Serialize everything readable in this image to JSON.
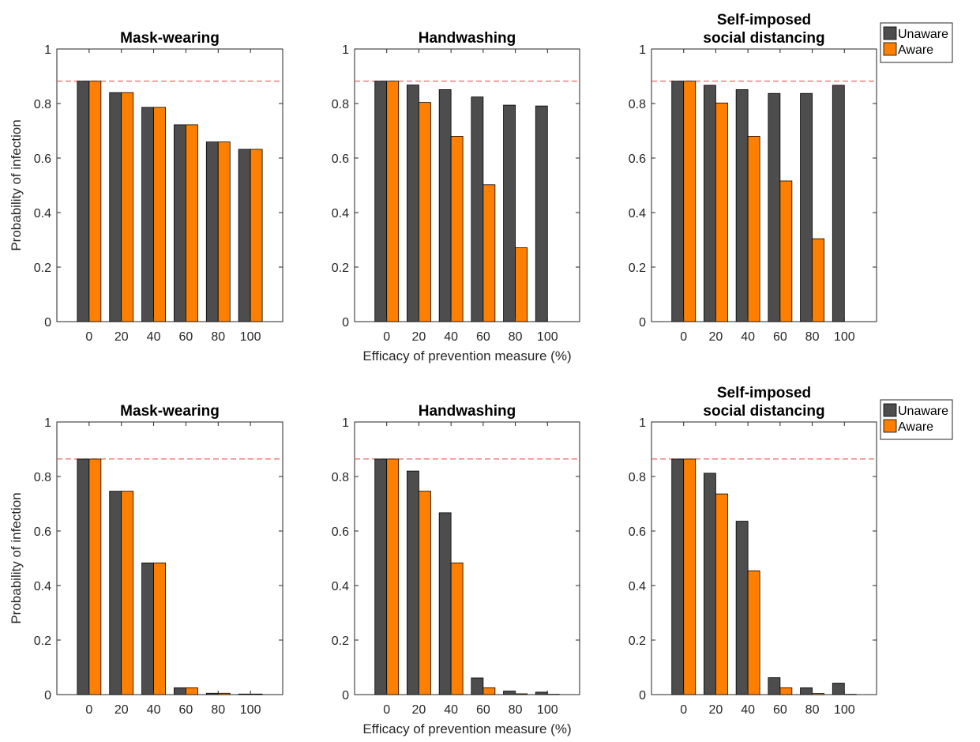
{
  "legend": {
    "labels": [
      "Unaware",
      "Aware"
    ]
  },
  "colors": {
    "unaware": "#4d4d4d",
    "aware": "#ff8000",
    "reference_line": "#e8413a",
    "axis": "#262626"
  },
  "chart_data": [
    {
      "type": "bar",
      "title": "Mask-wearing",
      "ylabel": "Probability of infection",
      "xlabel": "",
      "categories": [
        "0",
        "20",
        "40",
        "60",
        "80",
        "100"
      ],
      "yticks": [
        "0",
        "0.2",
        "0.4",
        "0.6",
        "0.8",
        "1"
      ],
      "ylim": [
        0,
        1
      ],
      "reference_line": 0.882,
      "series": [
        {
          "name": "Unaware",
          "values": [
            0.882,
            0.84,
            0.786,
            0.722,
            0.659,
            0.632
          ]
        },
        {
          "name": "Aware",
          "values": [
            0.882,
            0.84,
            0.786,
            0.722,
            0.659,
            0.632
          ]
        }
      ]
    },
    {
      "type": "bar",
      "title": "Handwashing",
      "ylabel": "",
      "xlabel": "Efficacy of prevention measure (%)",
      "categories": [
        "0",
        "20",
        "40",
        "60",
        "80",
        "100"
      ],
      "yticks": [
        "0",
        "0.2",
        "0.4",
        "0.6",
        "0.8",
        "1"
      ],
      "ylim": [
        0,
        1
      ],
      "reference_line": 0.882,
      "series": [
        {
          "name": "Unaware",
          "values": [
            0.882,
            0.868,
            0.851,
            0.824,
            0.794,
            0.791
          ]
        },
        {
          "name": "Aware",
          "values": [
            0.882,
            0.804,
            0.68,
            0.502,
            0.271,
            0.0
          ]
        }
      ]
    },
    {
      "type": "bar",
      "title": "Self-imposed\nsocial distancing",
      "ylabel": "",
      "xlabel": "",
      "categories": [
        "0",
        "20",
        "40",
        "60",
        "80",
        "100"
      ],
      "yticks": [
        "0",
        "0.2",
        "0.4",
        "0.6",
        "0.8",
        "1"
      ],
      "ylim": [
        0,
        1
      ],
      "reference_line": 0.882,
      "series": [
        {
          "name": "Unaware",
          "values": [
            0.882,
            0.867,
            0.851,
            0.837,
            0.837,
            0.867
          ]
        },
        {
          "name": "Aware",
          "values": [
            0.882,
            0.802,
            0.68,
            0.516,
            0.304,
            0.0
          ]
        }
      ]
    },
    {
      "type": "bar",
      "title": "Mask-wearing",
      "ylabel": "Probability of infection",
      "xlabel": "",
      "categories": [
        "0",
        "20",
        "40",
        "60",
        "80",
        "100"
      ],
      "yticks": [
        "0",
        "0.2",
        "0.4",
        "0.6",
        "0.8",
        "1"
      ],
      "ylim": [
        0,
        1
      ],
      "reference_line": 0.864,
      "series": [
        {
          "name": "Unaware",
          "values": [
            0.864,
            0.746,
            0.483,
            0.025,
            0.005,
            0.002
          ]
        },
        {
          "name": "Aware",
          "values": [
            0.864,
            0.746,
            0.483,
            0.025,
            0.005,
            0.002
          ]
        }
      ]
    },
    {
      "type": "bar",
      "title": "Handwashing",
      "ylabel": "",
      "xlabel": "Efficacy of prevention measure (%)",
      "categories": [
        "0",
        "20",
        "40",
        "60",
        "80",
        "100"
      ],
      "yticks": [
        "0",
        "0.2",
        "0.4",
        "0.6",
        "0.8",
        "1"
      ],
      "ylim": [
        0,
        1
      ],
      "reference_line": 0.864,
      "series": [
        {
          "name": "Unaware",
          "values": [
            0.864,
            0.82,
            0.667,
            0.061,
            0.013,
            0.009
          ]
        },
        {
          "name": "Aware",
          "values": [
            0.864,
            0.746,
            0.483,
            0.025,
            0.003,
            0.001
          ]
        }
      ]
    },
    {
      "type": "bar",
      "title": "Self-imposed\nsocial distancing",
      "ylabel": "",
      "xlabel": "",
      "categories": [
        "0",
        "20",
        "40",
        "60",
        "80",
        "100"
      ],
      "yticks": [
        "0",
        "0.2",
        "0.4",
        "0.6",
        "0.8",
        "1"
      ],
      "ylim": [
        0,
        1
      ],
      "reference_line": 0.864,
      "series": [
        {
          "name": "Unaware",
          "values": [
            0.864,
            0.812,
            0.636,
            0.062,
            0.025,
            0.042
          ]
        },
        {
          "name": "Aware",
          "values": [
            0.864,
            0.736,
            0.454,
            0.025,
            0.004,
            0.001
          ]
        }
      ]
    }
  ]
}
